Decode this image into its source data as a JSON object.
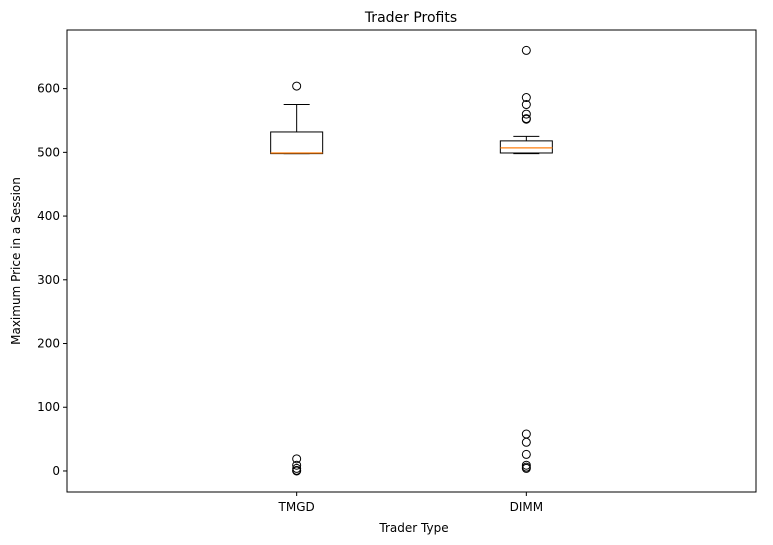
{
  "chart_data": {
    "type": "box",
    "title": "Trader Profits",
    "xlabel": "Trader Type",
    "ylabel": "Maximum Price in a Session",
    "ylim": [
      -33,
      692
    ],
    "yticks": [
      0,
      100,
      200,
      300,
      400,
      500,
      600
    ],
    "grid": false,
    "categories": [
      "TMGD",
      "DIMM"
    ],
    "boxes": [
      {
        "name": "TMGD",
        "whisker_low": 498,
        "q1": 498,
        "median": 499,
        "q3": 532,
        "whisker_high": 575,
        "outliers": [
          604,
          19,
          9,
          4,
          1,
          0
        ]
      },
      {
        "name": "DIMM",
        "whisker_low": 498,
        "q1": 499,
        "median": 507,
        "q3": 518,
        "whisker_high": 525,
        "outliers": [
          660,
          586,
          575,
          560,
          553,
          552,
          58,
          45,
          26,
          9,
          6,
          4
        ]
      }
    ],
    "colors": {
      "box": "#000000",
      "median": "#ff7f0e"
    }
  }
}
